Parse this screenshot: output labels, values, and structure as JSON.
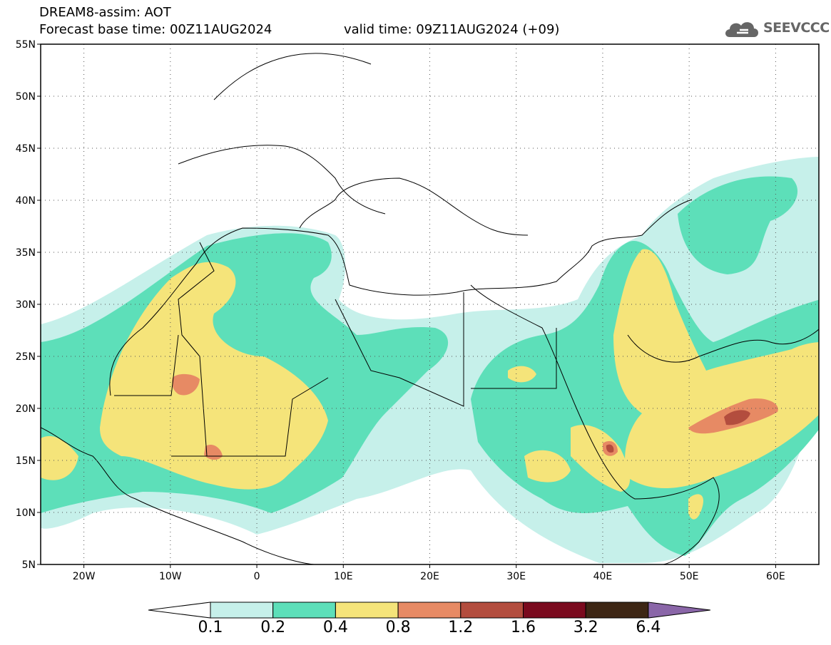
{
  "title": {
    "line1": "DREAM8-assim: AOT",
    "base": "Forecast base time: 00Z11AUG2024",
    "valid": "valid time: 09Z11AUG2024 (+09)"
  },
  "logo": {
    "text": "SEEVCCC",
    "icon": "cloud-logo-icon"
  },
  "map": {
    "projection": "equirectangular",
    "lon_range": [
      -25,
      65
    ],
    "lat_range": [
      5,
      55
    ],
    "lat_ticks": [
      "55N",
      "50N",
      "45N",
      "40N",
      "35N",
      "30N",
      "25N",
      "20N",
      "15N",
      "10N",
      "5N"
    ],
    "lon_ticks": [
      "20W",
      "10W",
      "0",
      "10E",
      "20E",
      "30E",
      "40E",
      "50E",
      "60E"
    ],
    "grid": "dotted"
  },
  "colorbar": {
    "labels": [
      "0.1",
      "0.2",
      "0.4",
      "0.8",
      "1.2",
      "1.6",
      "3.2",
      "6.4"
    ],
    "colors": [
      "#c6f0ea",
      "#5ddfb9",
      "#f5e47a",
      "#e78a64",
      "#b34d3e",
      "#7a0a1e",
      "#3d2614",
      "#8a66a8"
    ]
  }
}
